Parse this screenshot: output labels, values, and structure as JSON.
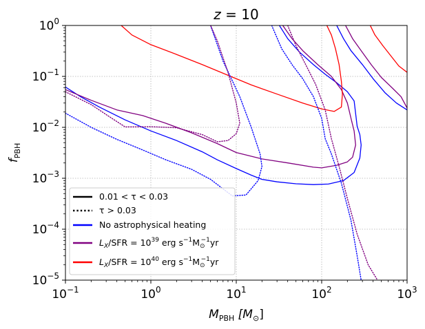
{
  "chart_data": {
    "type": "line",
    "title": "z = 10",
    "title_parts": {
      "var": "z",
      "eq": " = 10"
    },
    "xlabel": "M_PBH [M_⊙]",
    "xlabel_parts": {
      "var": "M",
      "sub": "PBH",
      "rest": " [M",
      "sub2": "⊙",
      "close": "]"
    },
    "ylabel": "f_PBH",
    "ylabel_parts": {
      "var": "f",
      "sub": "PBH"
    },
    "xscale": "log",
    "yscale": "log",
    "xlim": [
      0.1,
      1000
    ],
    "ylim": [
      1e-05,
      1
    ],
    "grid": true,
    "x_ticks": [
      {
        "value": 0.1,
        "base": "10",
        "exp": "−1"
      },
      {
        "value": 1,
        "base": "10",
        "exp": "0"
      },
      {
        "value": 10,
        "base": "10",
        "exp": "1"
      },
      {
        "value": 100,
        "base": "10",
        "exp": "2"
      },
      {
        "value": 1000,
        "base": "10",
        "exp": "3"
      }
    ],
    "y_ticks": [
      {
        "value": 1e-05,
        "base": "10",
        "exp": "−5"
      },
      {
        "value": 0.0001,
        "base": "10",
        "exp": "−4"
      },
      {
        "value": 0.001,
        "base": "10",
        "exp": "−3"
      },
      {
        "value": 0.01,
        "base": "10",
        "exp": "−2"
      },
      {
        "value": 0.1,
        "base": "10",
        "exp": "−1"
      },
      {
        "value": 1,
        "base": "10",
        "exp": "0"
      }
    ],
    "legend": {
      "location": "lower-left",
      "entries": [
        {
          "label": "0.01 < τ < 0.03",
          "color": "#000000",
          "style": "solid"
        },
        {
          "label": "τ > 0.03",
          "color": "#000000",
          "style": "dotted"
        },
        {
          "label": "No astrophysical heating",
          "color": "#0000ff",
          "style": "solid"
        },
        {
          "label": "L_X/SFR = 10^39 erg s^-1 M_⊙^-1 yr",
          "color": "#800080",
          "style": "solid",
          "parts": {
            "pre": "L",
            "sub": "X",
            "mid": "/SFR = 10",
            "exp": "39",
            "unit": " erg s",
            "uexp": "−1",
            "m": "M",
            "msub": "⊙",
            "mexp": "−1",
            "end": "yr"
          }
        },
        {
          "label": "L_X/SFR = 10^40 erg s^-1 M_⊙^-1 yr",
          "color": "#ff0000",
          "style": "solid",
          "parts": {
            "pre": "L",
            "sub": "X",
            "mid": "/SFR = 10",
            "exp": "40",
            "unit": " erg s",
            "uexp": "−1",
            "m": "M",
            "msub": "⊙",
            "mexp": "−1",
            "end": "yr"
          }
        }
      ]
    },
    "series": [
      {
        "name": "No astrophysical heating",
        "color": "#0000ff",
        "style": "solid",
        "segment": "left",
        "points": [
          [
            0.1,
            0.062
          ],
          [
            0.15,
            0.04
          ],
          [
            0.25,
            0.025
          ],
          [
            0.5,
            0.014
          ],
          [
            1,
            0.0085
          ],
          [
            2,
            0.0055
          ],
          [
            4,
            0.0033
          ],
          [
            6,
            0.0023
          ],
          [
            10,
            0.00155
          ],
          [
            15,
            0.00115
          ],
          [
            20,
            0.00095
          ],
          [
            30,
            0.00085
          ],
          [
            50,
            0.00078
          ],
          [
            80,
            0.00075
          ],
          [
            120,
            0.00077
          ],
          [
            180,
            0.0009
          ],
          [
            240,
            0.0013
          ],
          [
            280,
            0.0025
          ],
          [
            290,
            0.0045
          ],
          [
            280,
            0.0072
          ],
          [
            260,
            0.0105
          ]
        ]
      },
      {
        "name": "No astrophysical heating",
        "color": "#0000ff",
        "style": "solid",
        "segment": "right",
        "points": [
          [
            32,
            1.0
          ],
          [
            40,
            0.55
          ],
          [
            55,
            0.3
          ],
          [
            80,
            0.17
          ],
          [
            110,
            0.11
          ],
          [
            150,
            0.075
          ],
          [
            200,
            0.05
          ],
          [
            240,
            0.033
          ],
          [
            260,
            0.0105
          ]
        ]
      },
      {
        "name": "No astrophysical heating",
        "color": "#0000ff",
        "style": "solid",
        "segment": "right-outer",
        "points": [
          [
            150,
            1.0
          ],
          [
            180,
            0.55
          ],
          [
            220,
            0.32
          ],
          [
            300,
            0.17
          ],
          [
            400,
            0.09
          ],
          [
            550,
            0.048
          ],
          [
            750,
            0.03
          ],
          [
            1000,
            0.022
          ]
        ]
      },
      {
        "name": "L_X/SFR = 10^39",
        "color": "#800080",
        "style": "solid",
        "segment": "left",
        "points": [
          [
            0.1,
            0.055
          ],
          [
            0.2,
            0.034
          ],
          [
            0.4,
            0.022
          ],
          [
            0.8,
            0.017
          ],
          [
            1.5,
            0.012
          ],
          [
            3,
            0.0078
          ],
          [
            6,
            0.0048
          ],
          [
            10,
            0.0032
          ],
          [
            20,
            0.0024
          ],
          [
            40,
            0.002
          ],
          [
            80,
            0.00165
          ],
          [
            100,
            0.0016
          ],
          [
            150,
            0.0018
          ],
          [
            200,
            0.0021
          ],
          [
            230,
            0.0026
          ],
          [
            250,
            0.0045
          ],
          [
            240,
            0.0085
          ],
          [
            225,
            0.013
          ]
        ]
      },
      {
        "name": "L_X/SFR = 10^39",
        "color": "#800080",
        "style": "solid",
        "segment": "right",
        "points": [
          [
            35,
            1.0
          ],
          [
            45,
            0.55
          ],
          [
            60,
            0.32
          ],
          [
            90,
            0.17
          ],
          [
            130,
            0.1
          ],
          [
            170,
            0.055
          ],
          [
            200,
            0.03
          ],
          [
            225,
            0.013
          ]
        ]
      },
      {
        "name": "L_X/SFR = 10^39",
        "color": "#800080",
        "style": "solid",
        "segment": "right-outer",
        "points": [
          [
            190,
            1.0
          ],
          [
            230,
            0.55
          ],
          [
            290,
            0.32
          ],
          [
            380,
            0.17
          ],
          [
            500,
            0.095
          ],
          [
            680,
            0.058
          ],
          [
            850,
            0.04
          ],
          [
            1000,
            0.024
          ]
        ]
      },
      {
        "name": "L_X/SFR = 10^40",
        "color": "#ff0000",
        "style": "solid",
        "segment": "left",
        "points": [
          [
            0.45,
            1.0
          ],
          [
            0.6,
            0.65
          ],
          [
            1.0,
            0.42
          ],
          [
            2,
            0.27
          ],
          [
            4,
            0.17
          ],
          [
            8,
            0.105
          ],
          [
            15,
            0.068
          ],
          [
            30,
            0.045
          ],
          [
            60,
            0.03
          ],
          [
            100,
            0.023
          ],
          [
            140,
            0.0205
          ],
          [
            170,
            0.025
          ],
          [
            175,
            0.045
          ],
          [
            170,
            0.08
          ],
          [
            160,
            0.17
          ],
          [
            145,
            0.35
          ],
          [
            130,
            0.65
          ],
          [
            115,
            1.0
          ]
        ]
      },
      {
        "name": "L_X/SFR = 10^40",
        "color": "#ff0000",
        "style": "solid",
        "segment": "right-outer",
        "points": [
          [
            370,
            1.0
          ],
          [
            420,
            0.65
          ],
          [
            520,
            0.4
          ],
          [
            650,
            0.25
          ],
          [
            800,
            0.16
          ],
          [
            1000,
            0.12
          ]
        ]
      },
      {
        "name": "No astrophysical heating",
        "color": "#0000ff",
        "style": "dotted",
        "segment": "left",
        "points": [
          [
            0.1,
            0.019
          ],
          [
            0.2,
            0.01
          ],
          [
            0.4,
            0.0058
          ],
          [
            0.8,
            0.0036
          ],
          [
            1.5,
            0.0023
          ],
          [
            3,
            0.0015
          ],
          [
            5,
            0.00095
          ],
          [
            7,
            0.00062
          ],
          [
            9,
            0.00045
          ],
          [
            13,
            0.00047
          ],
          [
            18,
            0.0009
          ],
          [
            20,
            0.0017
          ],
          [
            19,
            0.003
          ],
          [
            15,
            0.01
          ],
          [
            11,
            0.04
          ],
          [
            7,
            0.2
          ],
          [
            5,
            1.0
          ]
        ]
      },
      {
        "name": "No astrophysical heating",
        "color": "#0000ff",
        "style": "dotted",
        "segment": "right",
        "points": [
          [
            26,
            1.0
          ],
          [
            34,
            0.35
          ],
          [
            45,
            0.17
          ],
          [
            60,
            0.09
          ],
          [
            80,
            0.04
          ],
          [
            100,
            0.015
          ],
          [
            110,
            0.006
          ],
          [
            130,
            0.003
          ],
          [
            170,
            0.0008
          ],
          [
            220,
            0.00015
          ],
          [
            260,
            3e-05
          ],
          [
            290,
            1e-05
          ]
        ]
      },
      {
        "name": "L_X/SFR = 10^39",
        "color": "#800080",
        "style": "dotted",
        "segment": "left",
        "points": [
          [
            0.1,
            0.05
          ],
          [
            0.2,
            0.028
          ],
          [
            0.35,
            0.015
          ],
          [
            0.5,
            0.0102
          ],
          [
            1,
            0.0103
          ],
          [
            2,
            0.0098
          ],
          [
            4,
            0.0072
          ],
          [
            6,
            0.0052
          ],
          [
            8,
            0.0055
          ],
          [
            10,
            0.0075
          ],
          [
            11,
            0.012
          ],
          [
            10,
            0.03
          ],
          [
            8,
            0.12
          ],
          [
            6,
            0.5
          ],
          [
            5,
            1.0
          ]
        ]
      },
      {
        "name": "L_X/SFR = 10^39",
        "color": "#800080",
        "style": "dotted",
        "segment": "right",
        "points": [
          [
            40,
            1.0
          ],
          [
            50,
            0.4
          ],
          [
            65,
            0.17
          ],
          [
            85,
            0.07
          ],
          [
            110,
            0.022
          ],
          [
            130,
            0.006
          ],
          [
            160,
            0.0017
          ],
          [
            200,
            0.0004
          ],
          [
            260,
            8e-05
          ],
          [
            350,
            2e-05
          ],
          [
            450,
            1e-05
          ]
        ]
      }
    ]
  }
}
